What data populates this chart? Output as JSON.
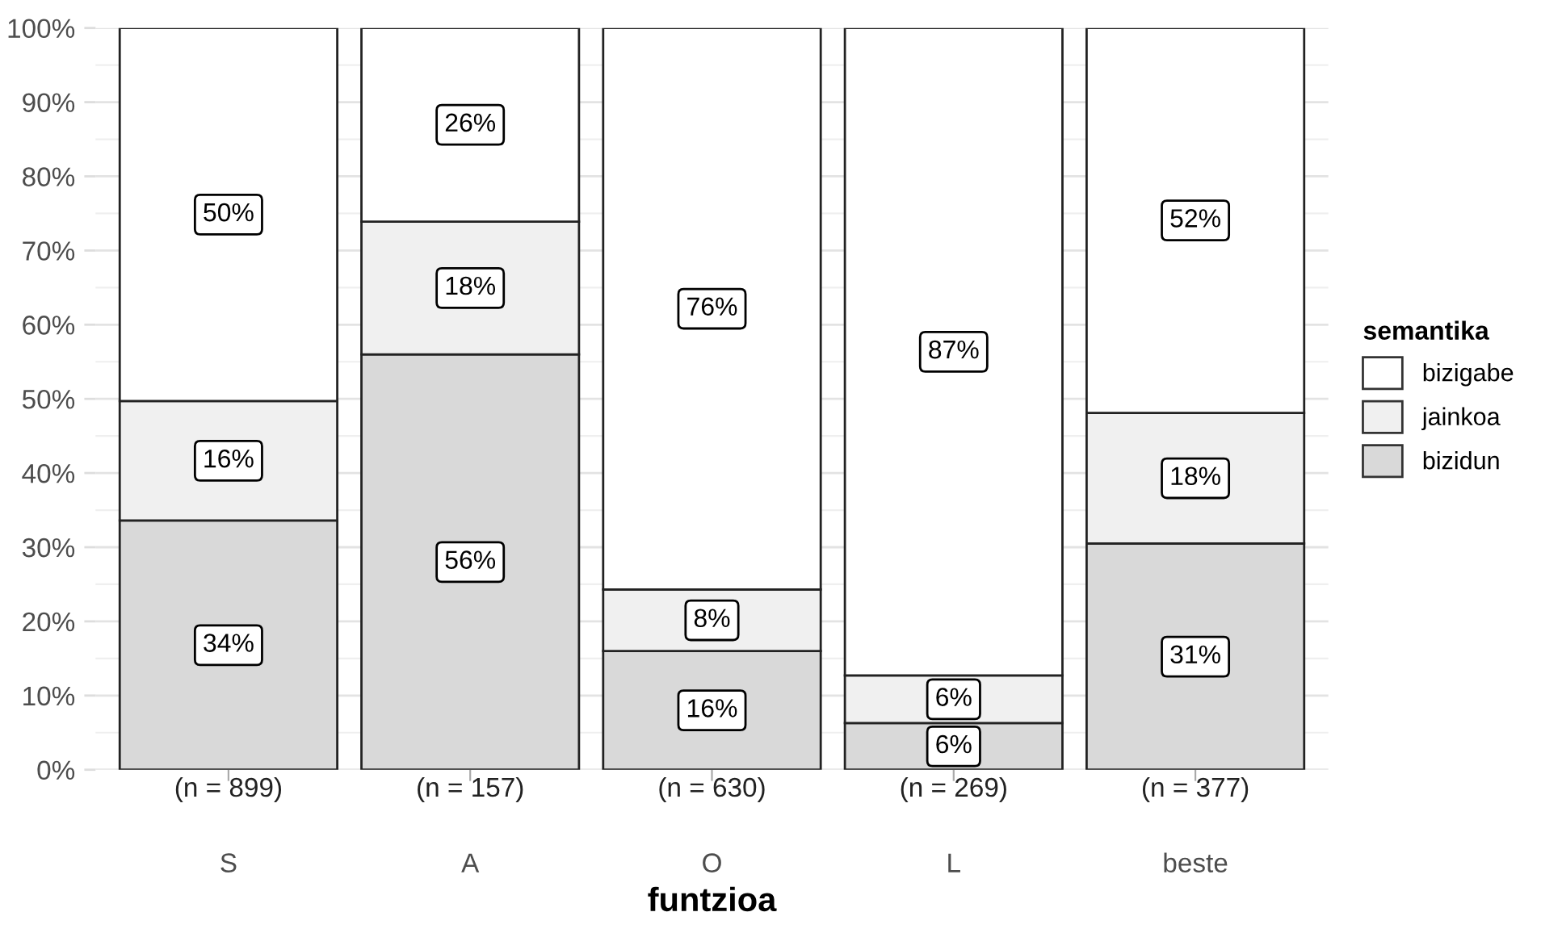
{
  "chart_data": {
    "type": "bar",
    "stacked": true,
    "xlabel": "funtzioa",
    "legend_title": "semantika",
    "legend": "right",
    "grid": "y",
    "categories": [
      "S",
      "A",
      "O",
      "L",
      "beste"
    ],
    "annotations": [
      "(n = 899)",
      "(n = 157)",
      "(n = 630)",
      "(n = 269)",
      "(n = 377)"
    ],
    "ylim": [
      0,
      100
    ],
    "yticks": [
      {
        "value": 0,
        "label": "0%"
      },
      {
        "value": 10,
        "label": "10%"
      },
      {
        "value": 20,
        "label": "20%"
      },
      {
        "value": 30,
        "label": "30%"
      },
      {
        "value": 40,
        "label": "40%"
      },
      {
        "value": 50,
        "label": "50%"
      },
      {
        "value": 60,
        "label": "60%"
      },
      {
        "value": 70,
        "label": "70%"
      },
      {
        "value": 80,
        "label": "80%"
      },
      {
        "value": 90,
        "label": "90%"
      },
      {
        "value": 100,
        "label": "100%"
      }
    ],
    "series": [
      {
        "name": "bizidun",
        "color": "#d9d9d9",
        "values": [
          33.6,
          56.0,
          16.0,
          6.3,
          30.5
        ],
        "value_labels": [
          "34%",
          "56%",
          "16%",
          "6%",
          "31%"
        ]
      },
      {
        "name": "jainkoa",
        "color": "#f0f0f0",
        "values": [
          16.1,
          17.9,
          8.3,
          6.4,
          17.6
        ],
        "value_labels": [
          "16%",
          "18%",
          "8%",
          "6%",
          "18%"
        ]
      },
      {
        "name": "bizigabe",
        "color": "#ffffff",
        "values": [
          50.3,
          26.1,
          75.7,
          87.3,
          51.9
        ],
        "value_labels": [
          "50%",
          "26%",
          "76%",
          "87%",
          "52%"
        ]
      }
    ]
  }
}
